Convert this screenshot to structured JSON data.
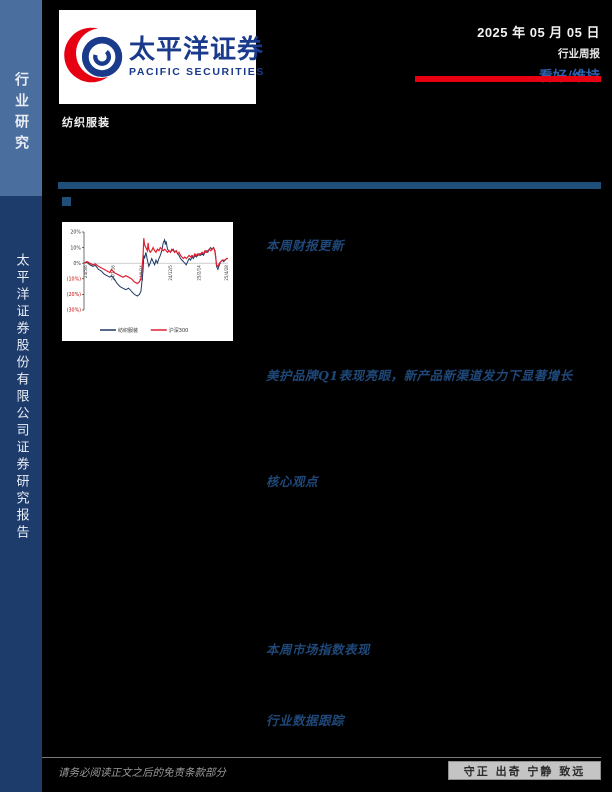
{
  "sidebar": {
    "top_label": "行业研究",
    "bottom_label": "太平洋证券股份有限公司证券研究报告",
    "top_bg": "#4a6e9e",
    "bottom_bg": "#1d3c6b"
  },
  "header": {
    "logo_cn": "太平洋证券",
    "logo_en": "PACIFIC SECURITIES",
    "date": "2025 年 05 月 05 日",
    "report_type": "行业周报",
    "rating": "看好/维持",
    "accent_red": "#e60012",
    "logo_blue": "#1a3a8c"
  },
  "industry_label": "纺织服装",
  "sections": {
    "s1": "本周财报更新",
    "s2": "美护品牌Q1表现亮眼，新产品新渠道发力下显著增长",
    "s3": "核心观点",
    "s4": "本周市场指数表现",
    "s5": "行业数据跟踪"
  },
  "footer": {
    "disclaimer": "请务必阅读正文之后的免责条款部分",
    "motto": "守正 出奇 宁静 致远"
  },
  "chart_data": {
    "type": "line",
    "title": "",
    "xlabel": "",
    "ylabel": "",
    "ylim": [
      -30,
      20
    ],
    "yticks": [
      20,
      10,
      0,
      -10,
      -20,
      -30
    ],
    "ytick_labels": [
      "20%",
      "10%",
      "0%",
      "(10%)",
      "(20%)",
      "(30%)"
    ],
    "xtick_labels": [
      "24/5/6",
      "24/7/16",
      "24/9/24",
      "24/12/5",
      "25/2/14",
      "25/4/28"
    ],
    "xtick_pos": [
      0.01,
      0.2,
      0.4,
      0.6,
      0.8,
      0.99
    ],
    "grid": "zero-line-only",
    "legend_position": "bottom",
    "series": [
      {
        "name": "纺织服装",
        "color": "#1f3864",
        "points": [
          [
            0,
            0
          ],
          [
            0.02,
            0.5
          ],
          [
            0.04,
            -1
          ],
          [
            0.06,
            -2
          ],
          [
            0.08,
            -1.5
          ],
          [
            0.1,
            -4
          ],
          [
            0.12,
            -5
          ],
          [
            0.14,
            -7
          ],
          [
            0.16,
            -8
          ],
          [
            0.18,
            -9
          ],
          [
            0.19,
            -8
          ],
          [
            0.21,
            -10
          ],
          [
            0.23,
            -13
          ],
          [
            0.25,
            -15
          ],
          [
            0.27,
            -16
          ],
          [
            0.29,
            -17
          ],
          [
            0.31,
            -16
          ],
          [
            0.33,
            -18
          ],
          [
            0.35,
            -20
          ],
          [
            0.37,
            -21
          ],
          [
            0.385,
            -20
          ],
          [
            0.395,
            -18
          ],
          [
            0.4,
            -14
          ],
          [
            0.41,
            -5
          ],
          [
            0.415,
            5
          ],
          [
            0.42,
            3
          ],
          [
            0.43,
            7
          ],
          [
            0.44,
            2
          ],
          [
            0.45,
            -2
          ],
          [
            0.46,
            0
          ],
          [
            0.47,
            3
          ],
          [
            0.48,
            1
          ],
          [
            0.49,
            -1
          ],
          [
            0.5,
            2
          ],
          [
            0.51,
            0
          ],
          [
            0.52,
            3
          ],
          [
            0.53,
            5
          ],
          [
            0.54,
            8
          ],
          [
            0.55,
            13
          ],
          [
            0.56,
            15
          ],
          [
            0.565,
            12
          ],
          [
            0.57,
            14
          ],
          [
            0.58,
            9
          ],
          [
            0.59,
            8
          ],
          [
            0.6,
            7
          ],
          [
            0.61,
            8
          ],
          [
            0.62,
            9
          ],
          [
            0.63,
            7
          ],
          [
            0.64,
            8
          ],
          [
            0.65,
            6
          ],
          [
            0.66,
            5
          ],
          [
            0.67,
            3
          ],
          [
            0.68,
            2
          ],
          [
            0.69,
            1
          ],
          [
            0.7,
            0
          ],
          [
            0.71,
            -1
          ],
          [
            0.72,
            1
          ],
          [
            0.73,
            3
          ],
          [
            0.74,
            2
          ],
          [
            0.75,
            4
          ],
          [
            0.76,
            3
          ],
          [
            0.77,
            5
          ],
          [
            0.78,
            4
          ],
          [
            0.79,
            5
          ],
          [
            0.8,
            6
          ],
          [
            0.81,
            5
          ],
          [
            0.82,
            6
          ],
          [
            0.83,
            5
          ],
          [
            0.84,
            7
          ],
          [
            0.85,
            8
          ],
          [
            0.86,
            7
          ],
          [
            0.87,
            9
          ],
          [
            0.88,
            10
          ],
          [
            0.89,
            9
          ],
          [
            0.9,
            10
          ],
          [
            0.91,
            8
          ],
          [
            0.915,
            4
          ],
          [
            0.92,
            -2
          ],
          [
            0.93,
            -4
          ],
          [
            0.94,
            -1
          ],
          [
            0.95,
            1
          ],
          [
            0.96,
            2
          ],
          [
            0.97,
            1
          ],
          [
            0.98,
            2
          ],
          [
            0.99,
            3
          ],
          [
            1,
            3
          ]
        ]
      },
      {
        "name": "沪深300",
        "color": "#e02030",
        "points": [
          [
            0,
            0
          ],
          [
            0.02,
            1
          ],
          [
            0.04,
            0
          ],
          [
            0.06,
            -1
          ],
          [
            0.08,
            -0.5
          ],
          [
            0.1,
            -2
          ],
          [
            0.12,
            -3
          ],
          [
            0.14,
            -4
          ],
          [
            0.16,
            -5
          ],
          [
            0.18,
            -6
          ],
          [
            0.19,
            -4
          ],
          [
            0.21,
            -6
          ],
          [
            0.23,
            -7
          ],
          [
            0.25,
            -8
          ],
          [
            0.27,
            -9
          ],
          [
            0.29,
            -8
          ],
          [
            0.31,
            -9
          ],
          [
            0.33,
            -10
          ],
          [
            0.35,
            -12
          ],
          [
            0.37,
            -13
          ],
          [
            0.385,
            -12
          ],
          [
            0.395,
            -10
          ],
          [
            0.4,
            -6
          ],
          [
            0.41,
            4
          ],
          [
            0.415,
            16
          ],
          [
            0.42,
            12
          ],
          [
            0.43,
            10
          ],
          [
            0.44,
            8
          ],
          [
            0.445,
            13
          ],
          [
            0.45,
            9
          ],
          [
            0.46,
            7
          ],
          [
            0.47,
            8
          ],
          [
            0.48,
            10
          ],
          [
            0.49,
            8
          ],
          [
            0.5,
            7
          ],
          [
            0.51,
            9
          ],
          [
            0.52,
            8
          ],
          [
            0.53,
            10
          ],
          [
            0.54,
            9
          ],
          [
            0.55,
            8
          ],
          [
            0.56,
            9
          ],
          [
            0.57,
            8
          ],
          [
            0.58,
            7
          ],
          [
            0.59,
            8
          ],
          [
            0.6,
            7
          ],
          [
            0.61,
            9
          ],
          [
            0.62,
            8
          ],
          [
            0.63,
            7
          ],
          [
            0.64,
            8
          ],
          [
            0.65,
            6
          ],
          [
            0.66,
            7
          ],
          [
            0.67,
            5
          ],
          [
            0.68,
            4
          ],
          [
            0.69,
            3
          ],
          [
            0.7,
            4
          ],
          [
            0.71,
            3
          ],
          [
            0.72,
            4
          ],
          [
            0.73,
            5
          ],
          [
            0.74,
            4
          ],
          [
            0.75,
            5
          ],
          [
            0.76,
            4
          ],
          [
            0.77,
            6
          ],
          [
            0.78,
            5
          ],
          [
            0.79,
            6
          ],
          [
            0.8,
            5
          ],
          [
            0.81,
            6
          ],
          [
            0.82,
            7
          ],
          [
            0.83,
            6
          ],
          [
            0.84,
            8
          ],
          [
            0.85,
            7
          ],
          [
            0.86,
            8
          ],
          [
            0.87,
            9
          ],
          [
            0.88,
            8
          ],
          [
            0.89,
            9
          ],
          [
            0.9,
            10
          ],
          [
            0.91,
            7
          ],
          [
            0.915,
            3
          ],
          [
            0.92,
            -1
          ],
          [
            0.93,
            -2
          ],
          [
            0.94,
            0
          ],
          [
            0.95,
            1
          ],
          [
            0.96,
            2
          ],
          [
            0.97,
            2
          ],
          [
            0.98,
            2
          ],
          [
            0.99,
            3
          ],
          [
            1,
            3
          ]
        ]
      }
    ]
  }
}
